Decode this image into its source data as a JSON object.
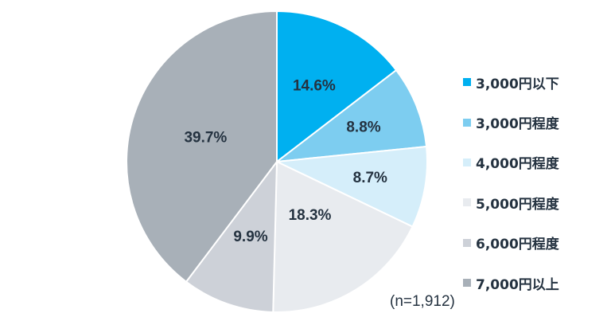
{
  "chart_data": {
    "type": "pie",
    "categories": [
      "3,000円以下",
      "3,000円程度",
      "4,000円程度",
      "5,000円程度",
      "6,000円程度",
      "7,000円以上"
    ],
    "values": [
      14.6,
      8.8,
      8.7,
      18.3,
      9.9,
      39.7
    ],
    "labels": [
      "14.6%",
      "8.8%",
      "8.7%",
      "18.3%",
      "9.9%",
      "39.7%"
    ],
    "colors": [
      "#00b0f0",
      "#7dcdf0",
      "#d5eefa",
      "#e8ebef",
      "#cdd1d8",
      "#a8b0b8"
    ],
    "start": "12 o'clock",
    "direction": "clockwise",
    "legend_position": "right"
  },
  "note": "(n=1,912)"
}
